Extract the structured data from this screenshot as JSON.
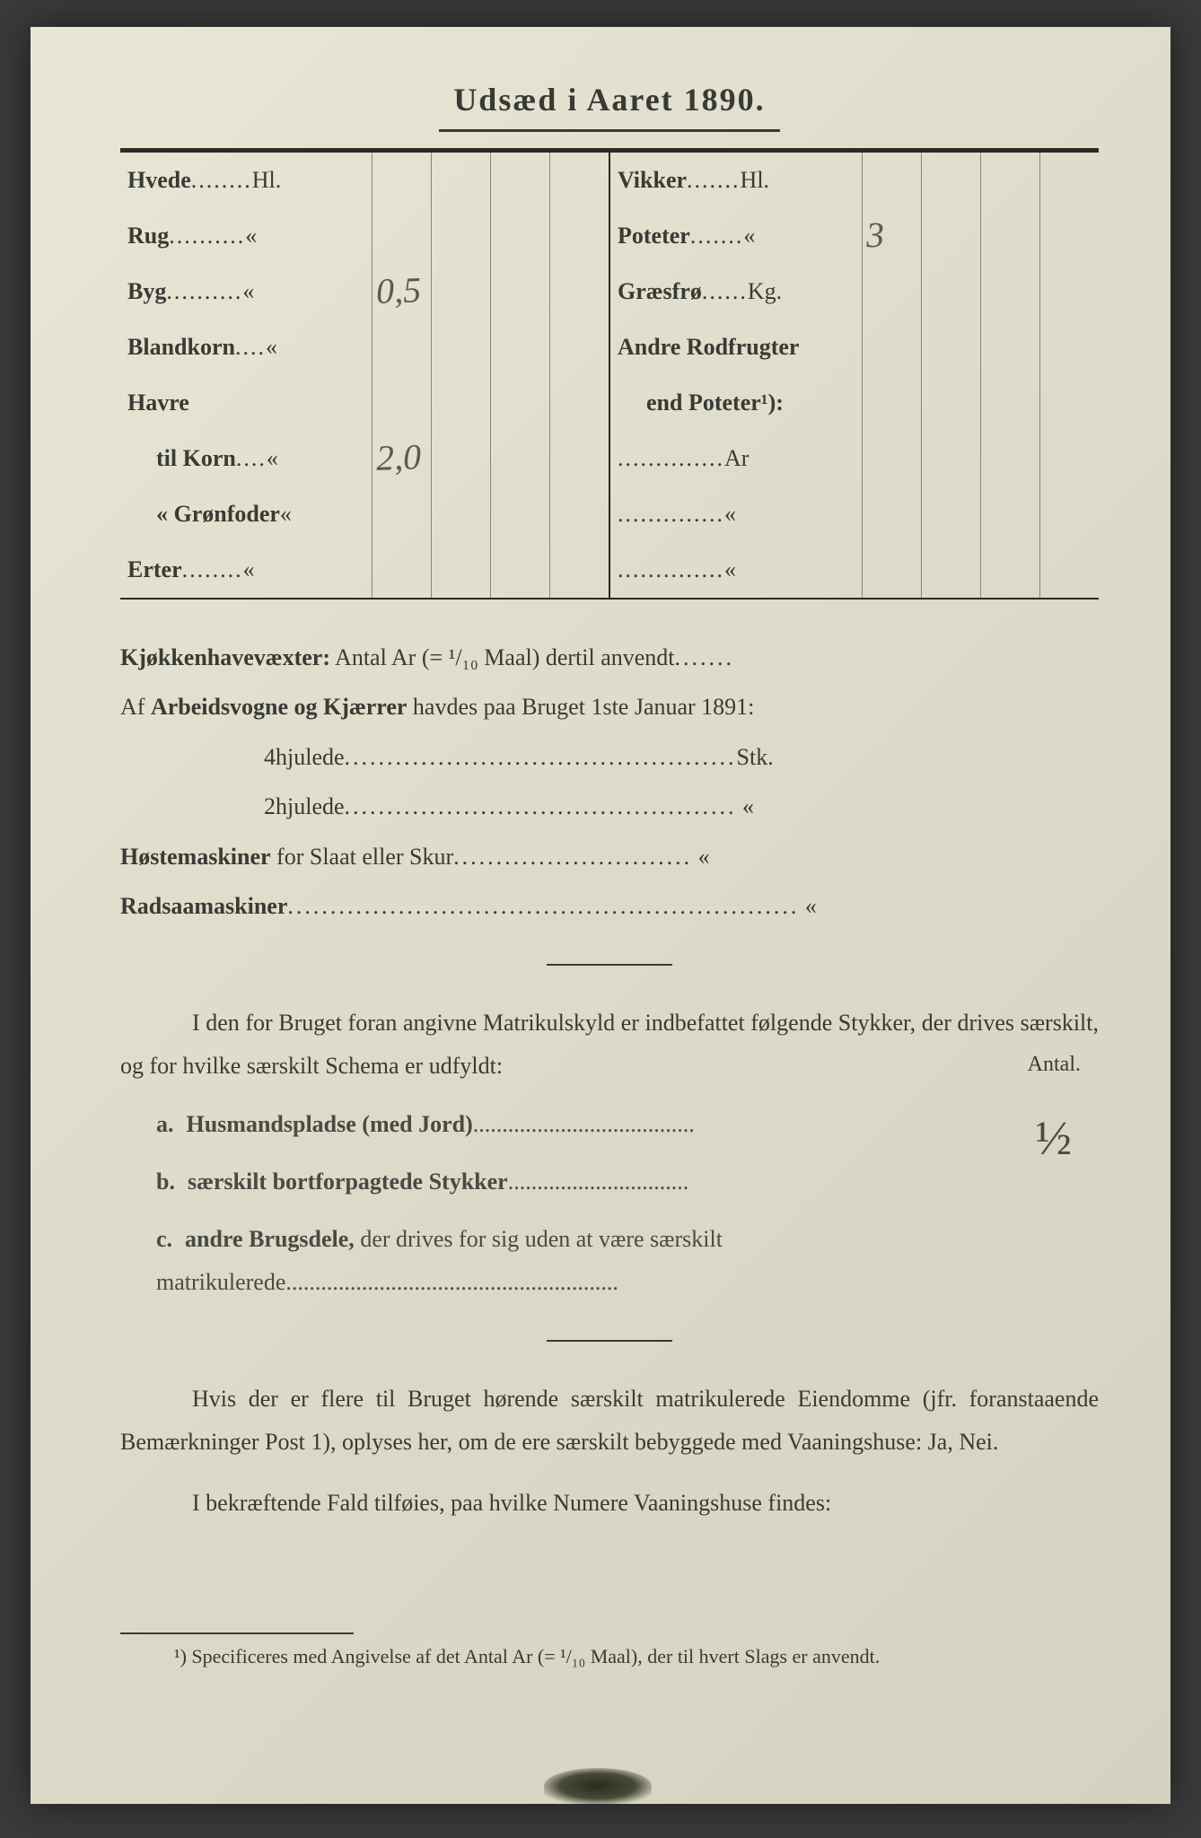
{
  "colors": {
    "paper_bg_light": "#e8e6d5",
    "paper_bg_dark": "#d4d2c0",
    "ink": "#3a3a35",
    "rule": "#2a2a25",
    "cell_border": "#888878",
    "handwriting": "#5a5a50",
    "page_surround": "#3a3a3a"
  },
  "typography": {
    "title_fontsize": 36,
    "body_fontsize": 26,
    "footnote_fontsize": 22,
    "handwriting_fontsize": 40,
    "font_family": "Georgia, Times New Roman, serif",
    "handwriting_family": "Brush Script MT, cursive"
  },
  "title": "Udsæd i Aaret 1890.",
  "crop_table": {
    "left": [
      {
        "label": "Hvede",
        "dots": "........",
        "unit": "Hl.",
        "value": ""
      },
      {
        "label": "Rug",
        "dots": "..........",
        "unit": "«",
        "value": ""
      },
      {
        "label": "Byg",
        "dots": "..........",
        "unit": "«",
        "value": "0,5"
      },
      {
        "label": "Blandkorn",
        "dots": "....",
        "unit": "«",
        "value": ""
      },
      {
        "label": "Havre",
        "dots": "",
        "unit": "",
        "value": ""
      },
      {
        "label": "til Korn",
        "dots": "....",
        "unit": "«",
        "value": "2,0",
        "indent": true
      },
      {
        "label": "« Grønfoder",
        "dots": "",
        "unit": "«",
        "value": "",
        "indent": true
      },
      {
        "label": "Erter",
        "dots": "........",
        "unit": "«",
        "value": ""
      }
    ],
    "right": [
      {
        "label": "Vikker",
        "dots": ".......",
        "unit": "Hl.",
        "value": ""
      },
      {
        "label": "Poteter",
        "dots": ".......",
        "unit": "«",
        "value": "3"
      },
      {
        "label": "Græsfrø",
        "dots": "......",
        "unit": "Kg.",
        "value": ""
      },
      {
        "label": "Andre Rodfrugter",
        "dots": "",
        "unit": "",
        "value": ""
      },
      {
        "label": "end Poteter¹):",
        "dots": "",
        "unit": "",
        "value": "",
        "indent": true
      },
      {
        "label": "",
        "dots": "..............",
        "unit": "Ar",
        "value": ""
      },
      {
        "label": "",
        "dots": "..............",
        "unit": "«",
        "value": ""
      },
      {
        "label": "",
        "dots": "..............",
        "unit": "«",
        "value": ""
      }
    ],
    "cells_per_row": 4
  },
  "kitchen_garden": {
    "label_bold": "Kjøkkenhavevæxter:",
    "text": " Antal Ar (= ¹/₁₀ Maal) dertil anvendt",
    "dots": "......."
  },
  "wagons": {
    "intro_pre": "Af ",
    "intro_bold": "Arbeidsvogne og Kjærrer",
    "intro_post": " havdes paa Bruget 1ste Januar 1891:",
    "row1_label": "4hjulede",
    "row1_dots": "..............................................",
    "row1_unit": "Stk.",
    "row2_label": "2hjulede",
    "row2_dots": "..............................................",
    "row2_unit": "«"
  },
  "machines": {
    "row1_bold": "Høstemaskiner",
    "row1_rest": " for Slaat eller Skur",
    "row1_dots": "............................",
    "row1_unit": "«",
    "row2_bold": "Radsaamaskiner",
    "row2_dots": "............................................................",
    "row2_unit": "«"
  },
  "matrikul": {
    "para": "I den for Bruget foran angivne Matrikulskyld er indbefattet følgende Stykker, der drives særskilt, og for hvilke særskilt Schema er udfyldt:",
    "antal_label": "Antal.",
    "items": [
      {
        "marker": "a.",
        "bold": "Husmandspladse (med Jord)",
        "dots": "......................................",
        "value": "½"
      },
      {
        "marker": "b.",
        "bold": "særskilt bortforpagtede Stykker",
        "dots": "...............................",
        "value": ""
      },
      {
        "marker": "c.",
        "bold": "andre Brugsdele,",
        "rest": " der drives for sig uden at være særskilt matrikulerede",
        "dots": ".........................................................",
        "value": ""
      }
    ]
  },
  "vaaningshuse": {
    "para1": "Hvis der er flere til Bruget hørende særskilt matrikulerede Eiendomme (jfr. foranstaaende Bemærkninger Post 1), oplyses her, om de ere særskilt bebyggede med ",
    "para1_bold": "Vaaningshuse:",
    "para1_end": " Ja, Nei.",
    "para2_pre": "I bekræftende Fald tilføies, paa ",
    "para2_bold": "hvilke Numere",
    "para2_end": " Vaaningshuse findes:"
  },
  "footnote": {
    "marker": "¹)",
    "text": " Specificeres med Angivelse af det Antal Ar (= ¹/₁₀ Maal), der til hvert Slags er anvendt."
  }
}
